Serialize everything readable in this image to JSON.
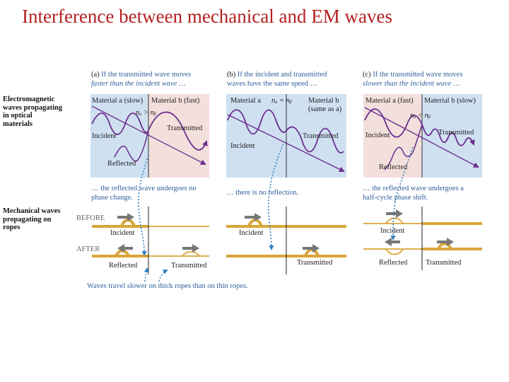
{
  "title": "Interference between mechanical and EM waves",
  "row_labels": {
    "em": [
      "Electromagnetic",
      "waves propagating",
      "in optical",
      "materials"
    ],
    "mech": [
      "Mechanical waves",
      "propagating on",
      "ropes"
    ]
  },
  "panels": [
    {
      "letter": "(a)",
      "caption_1": "If the transmitted wave moves",
      "caption_2": "faster than the incident wave …",
      "material_left": "Material a (slow)",
      "material_right": "Material b (fast)",
      "relation": "nₐ > nᵦ",
      "incident": "Incident",
      "transmitted": "Transmitted",
      "reflected": "Reflected",
      "note_1": "… the reflected wave undergoes no",
      "note_2": "phase change.",
      "rope_incident": "Incident",
      "rope_reflected": "Reflected",
      "rope_transmitted": "Transmitted"
    },
    {
      "letter": "(b)",
      "caption_1": "If the incident and transmitted",
      "caption_2": "waves have the same speed …",
      "material_left": "Material a",
      "material_right": "Material b",
      "material_right_2": "(same as a)",
      "relation": "nₐ = nᵦ",
      "incident": "Incident",
      "transmitted": "Transmitted",
      "note_1": "… there is no reflection.",
      "rope_incident": "Incident",
      "rope_transmitted": "Transmitted"
    },
    {
      "letter": "(c)",
      "caption_1": "If the transmitted wave moves",
      "caption_2": "slower than the incident wave …",
      "material_left": "Material a (fast)",
      "material_right": "Material b (slow)",
      "relation": "nₐ < nᵦ",
      "incident": "Incident",
      "transmitted": "Transmitted",
      "reflected": "Reflected",
      "note_1": "… the reflected wave undergoes a",
      "note_2": "half-cycle phase shift.",
      "rope_incident": "Incident",
      "rope_reflected": "Reflected",
      "rope_transmitted": "Transmitted"
    }
  ],
  "before_label": "BEFORE",
  "after_label": "AFTER",
  "footer": "Waves travel slower on thick ropes than on thin ropes.",
  "colors": {
    "title": "#b32121",
    "panel_blue": "#cfe0f1",
    "panel_pink": "#f3dfdc",
    "wave": "#6a2d8f",
    "rope": "#d9a53a",
    "arrow": "#6b6b6b",
    "dotted": "#2f7fc0",
    "caption": "#2e5f9c"
  }
}
